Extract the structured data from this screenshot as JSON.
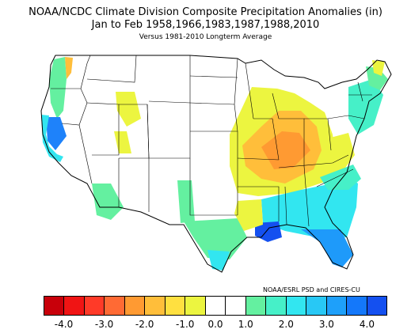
{
  "title": {
    "line1": "NOAA/NCDC Climate Division Composite Precipitation Anomalies (in)",
    "line2": "Jan to Feb   1958,1966,1983,1987,1988,2010",
    "line3": "Versus 1981-2010 Longterm Average"
  },
  "credit": "NOAA/ESRL PSD and CIRES-CU",
  "legend": {
    "colors": [
      "#c8000a",
      "#f01414",
      "#ff3a28",
      "#ff6a34",
      "#ff9a32",
      "#ffbe3a",
      "#ffe040",
      "#ecf540",
      "#ffffff",
      "#ffffff",
      "#64f0a0",
      "#46f0c8",
      "#32e6f0",
      "#28c8f5",
      "#1ea0fa",
      "#1478fa",
      "#1450f0"
    ],
    "ticks": [
      "-4.0",
      "-3.0",
      "-2.0",
      "-1.0",
      "0.0",
      "1.0",
      "2.0",
      "3.0",
      "4.0"
    ]
  },
  "palette": {
    "brown": "#ffbe3a",
    "orange": "#ff9a32",
    "yellow": "#ecf540",
    "green": "#64f0a0",
    "cyan": "#32e6f0",
    "teal": "#46f0c8",
    "blue": "#1478fa",
    "dark_blue": "#1450f0"
  }
}
